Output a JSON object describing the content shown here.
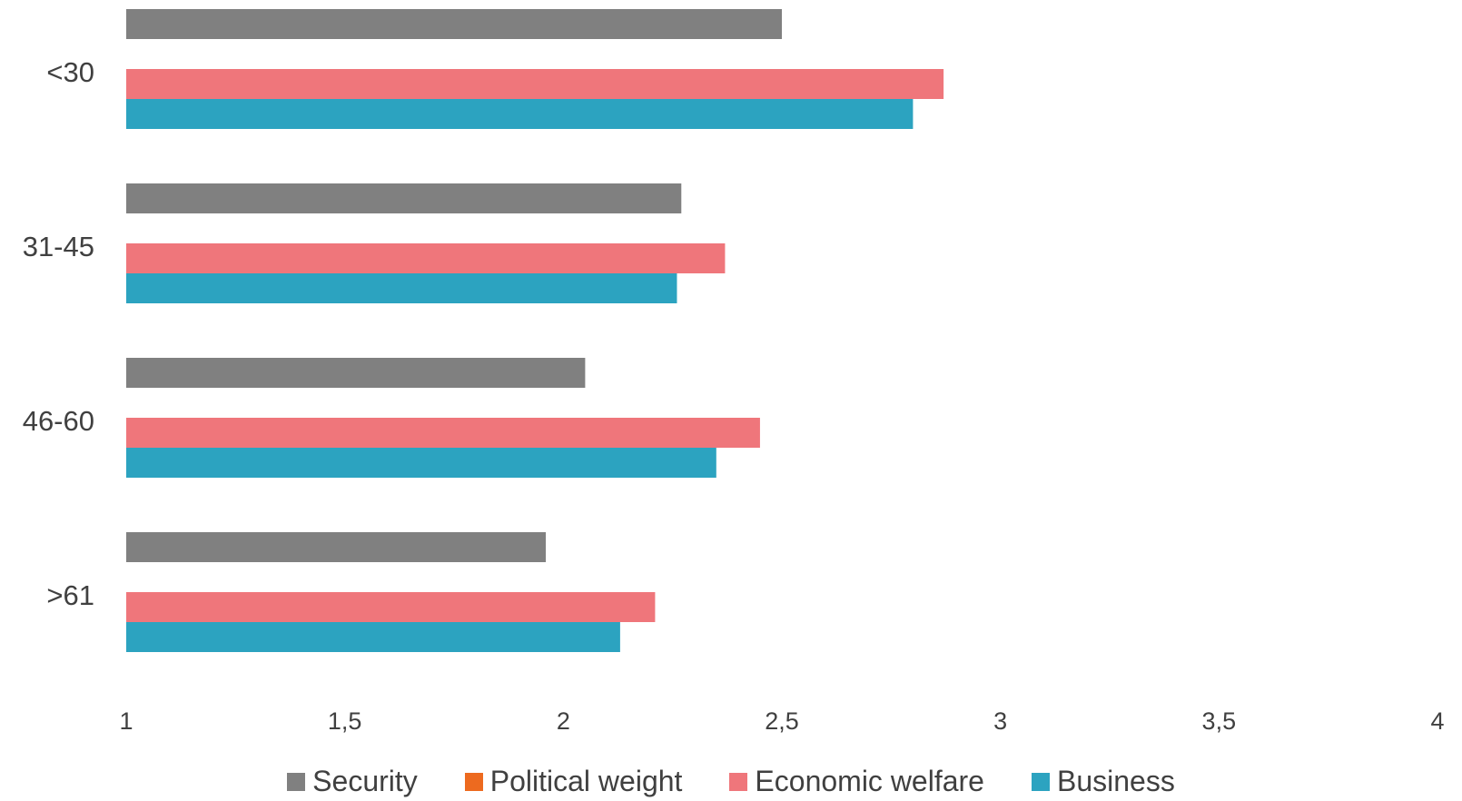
{
  "chart_data": {
    "type": "bar",
    "orientation": "horizontal",
    "categories": [
      "<30",
      "31-45",
      "46-60",
      ">61"
    ],
    "series": [
      {
        "name": "Security",
        "color": "#808080",
        "values": [
          2.5,
          2.27,
          2.05,
          1.96
        ]
      },
      {
        "name": "Political weight",
        "color": "#ED6A1F",
        "values": [
          null,
          null,
          null,
          null
        ]
      },
      {
        "name": "Economic welfare",
        "color": "#EF767B",
        "values": [
          2.87,
          2.37,
          2.45,
          2.21
        ]
      },
      {
        "name": "Business",
        "color": "#2CA3C0",
        "values": [
          2.8,
          2.26,
          2.35,
          2.13
        ]
      }
    ],
    "xlim": [
      1,
      4
    ],
    "xticks": [
      "1",
      "1,5",
      "2",
      "2,5",
      "3",
      "3,5",
      "4"
    ],
    "xtick_values": [
      1,
      1.5,
      2,
      2.5,
      3,
      3.5,
      4
    ],
    "grid": false,
    "legend_position": "bottom"
  }
}
